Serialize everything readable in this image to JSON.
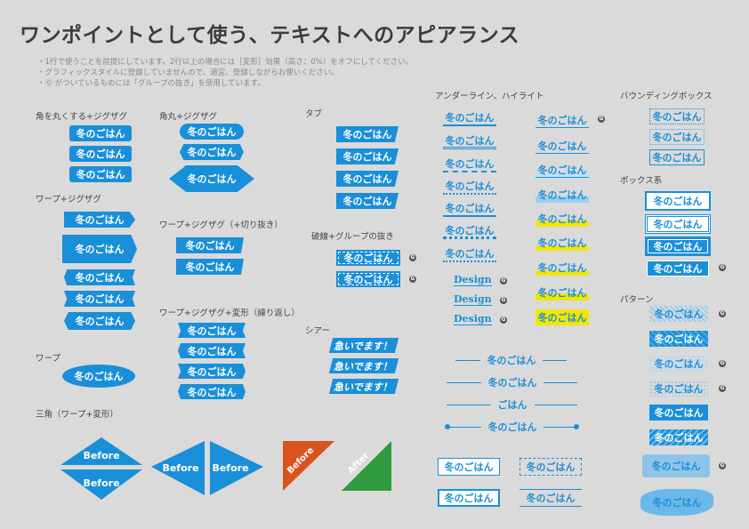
{
  "title": "ワンポイントとして使う、テキストへのアピアランス",
  "notes": [
    "・1行で使うことを前提にしています。2行以上の場合には［変形］効果（高さ：0%）をオフにしてください。",
    "・グラフィックスタイルに登録していませんので、適宜、登録しながらお使いください。",
    "・Ⓖ がついているものには「グループの抜き」を使用しています。"
  ],
  "sample": "冬のごはん",
  "sample_short": "ごはん",
  "sample_shear": "急いでます！",
  "design": "Design",
  "before": "Before",
  "after": "After",
  "g": "G",
  "sections": {
    "rounded_zigzag": "角を丸くする+ジグザグ",
    "warp_zigzag": "ワープ+ジグザグ",
    "warp": "ワープ",
    "triangle": "三角（ワープ+変形）",
    "round_zigzag": "角丸+ジグザグ",
    "warp_zigzag_cut": "ワープ+ジグザグ（+切り抜き）",
    "warp_zigzag_transform": "ワープ+ジグザグ+変形（繰り返し）",
    "tab": "タブ",
    "dash_group": "破線+グループの抜き",
    "shear": "シアー",
    "underline": "アンダーライン、ハイライト",
    "bounding": "バウンディングボックス",
    "box": "ボックス系",
    "pattern": "パターン"
  },
  "colors": {
    "blue": "#1a8fd9",
    "orange": "#d9531e",
    "green": "#2f9b3f",
    "yellow": "#f2e600",
    "bg": "#dadada"
  }
}
